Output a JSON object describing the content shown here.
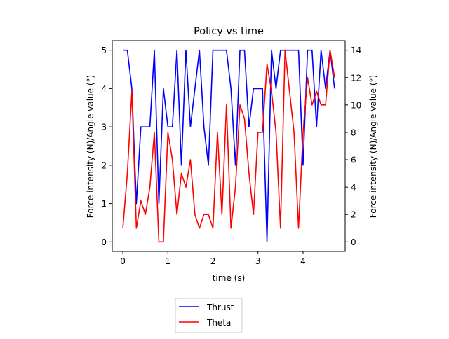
{
  "chart_data": {
    "type": "line",
    "title": "Policy vs time",
    "xlabel": "time (s)",
    "ylabel_left": "Force intensity (N)/Angle value (°)",
    "ylabel_right": "Force intensity (N)/Angle value (°)",
    "xlim": [
      -0.235,
      4.935
    ],
    "ylim_left": [
      -0.25,
      5.25
    ],
    "ylim_right": [
      -0.7,
      14.7
    ],
    "x_ticks": [
      0,
      1,
      2,
      3,
      4
    ],
    "y_left_ticks": [
      0,
      1,
      2,
      3,
      4,
      5
    ],
    "y_right_ticks": [
      0,
      2,
      4,
      6,
      8,
      10,
      12,
      14
    ],
    "grid": false,
    "legend": {
      "placement": "below plot, centered"
    },
    "series": [
      {
        "name": "Thrust",
        "axis": "left",
        "color": "#0000ff",
        "x": [
          0,
          0.1,
          0.2,
          0.3,
          0.4,
          0.5,
          0.6,
          0.7,
          0.8,
          0.9,
          1.0,
          1.1,
          1.2,
          1.3,
          1.4,
          1.5,
          1.6,
          1.7,
          1.8,
          1.9,
          2.0,
          2.1,
          2.2,
          2.3,
          2.4,
          2.5,
          2.6,
          2.7,
          2.8,
          2.9,
          3.0,
          3.1,
          3.2,
          3.3,
          3.4,
          3.5,
          3.6,
          3.7,
          3.8,
          3.9,
          4.0,
          4.1,
          4.2,
          4.3,
          4.4,
          4.5,
          4.6,
          4.7
        ],
        "y": [
          5,
          5,
          4,
          1,
          3,
          3,
          3,
          5,
          1,
          4,
          3,
          3,
          5,
          2,
          5,
          3,
          4,
          5,
          3,
          2,
          5,
          5,
          5,
          5,
          4,
          2,
          5,
          5,
          3,
          4,
          4,
          4,
          0,
          5,
          4,
          5,
          5,
          5,
          5,
          5,
          2,
          5,
          5,
          3,
          5,
          4,
          5,
          4
        ]
      },
      {
        "name": "Theta",
        "axis": "right",
        "color": "#ff0000",
        "x": [
          0,
          0.1,
          0.2,
          0.3,
          0.4,
          0.5,
          0.6,
          0.7,
          0.8,
          0.9,
          1.0,
          1.1,
          1.2,
          1.3,
          1.4,
          1.5,
          1.6,
          1.7,
          1.8,
          1.9,
          2.0,
          2.1,
          2.2,
          2.3,
          2.4,
          2.5,
          2.6,
          2.7,
          2.8,
          2.9,
          3.0,
          3.1,
          3.2,
          3.3,
          3.4,
          3.5,
          3.6,
          3.7,
          3.8,
          3.9,
          4.0,
          4.1,
          4.2,
          4.3,
          4.4,
          4.5,
          4.6,
          4.7
        ],
        "y": [
          1,
          5,
          11,
          1,
          3,
          2,
          4,
          8,
          0,
          0,
          8,
          6,
          2,
          5,
          4,
          6,
          2,
          1,
          2,
          2,
          1,
          8,
          2,
          10,
          1,
          4,
          10,
          9,
          5,
          2,
          8,
          8,
          13,
          11,
          8,
          1,
          14,
          11,
          8,
          1,
          8,
          12,
          10,
          11,
          10,
          10,
          14,
          12
        ]
      }
    ]
  }
}
